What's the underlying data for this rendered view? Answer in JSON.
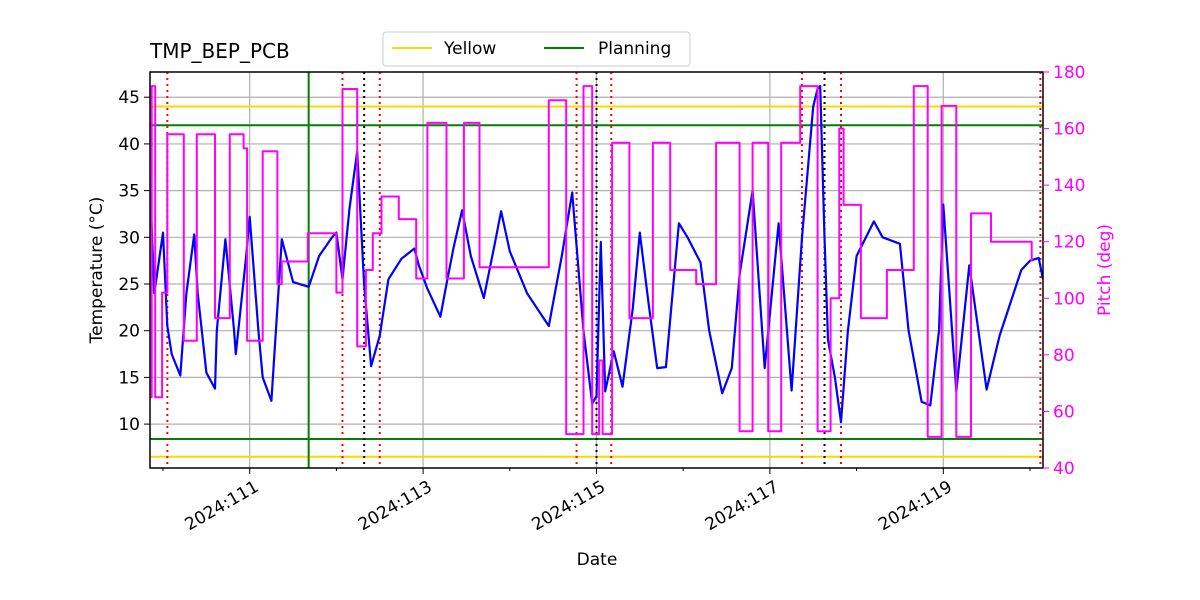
{
  "chart_data": {
    "type": "line",
    "title": "TMP_BEP_PCB",
    "xlabel": "Date",
    "ylabel": "Temperature ($^\\circ$C)",
    "ylabel_display": "Temperature (°C)",
    "y2label": "Pitch (deg)",
    "xlim": [
      109.85,
      120.15
    ],
    "ylim": [
      5.3,
      47.7
    ],
    "y2lim": [
      40,
      180
    ],
    "x_ticks": [
      111,
      113,
      115,
      117,
      119
    ],
    "x_tick_labels": [
      "2024:111",
      "2024:113",
      "2024:115",
      "2024:117",
      "2024:119"
    ],
    "x_minor_ticks": [
      110,
      112,
      114,
      116,
      118,
      120
    ],
    "y_ticks": [
      10,
      15,
      20,
      25,
      30,
      35,
      40,
      45
    ],
    "y_tick_labels": [
      "10",
      "15",
      "20",
      "25",
      "30",
      "35",
      "40",
      "45"
    ],
    "y2_ticks": [
      40,
      60,
      80,
      100,
      120,
      140,
      160,
      180
    ],
    "y2_tick_labels": [
      "40",
      "60",
      "80",
      "100",
      "120",
      "140",
      "160",
      "180"
    ],
    "grid": true,
    "legend": {
      "placement": "top-center",
      "entries": [
        {
          "label": "Yellow",
          "color": "#FFD700"
        },
        {
          "label": "Planning",
          "color": "#008000"
        }
      ]
    },
    "limits": {
      "yellow": [
        6.5,
        44.0
      ],
      "planning": [
        8.4,
        42.0
      ],
      "yellow_color": "#FFD700",
      "planning_color": "#008000"
    },
    "planning_vline_x": 111.68,
    "red_dotted_x": [
      110.05,
      112.07,
      112.5,
      114.77,
      115.17,
      117.37,
      117.82,
      120.12
    ],
    "black_dotted_x": [
      112.32,
      115.0,
      117.63
    ],
    "series": [
      {
        "name": "Temperature",
        "axis": "left",
        "color": "#0000FF",
        "x": [
          109.85,
          109.9,
          110.0,
          110.05,
          110.1,
          110.2,
          110.27,
          110.36,
          110.4,
          110.5,
          110.6,
          110.62,
          110.72,
          110.82,
          110.84,
          110.96,
          111.0,
          111.1,
          111.15,
          111.25,
          111.37,
          111.5,
          111.68,
          111.8,
          111.95,
          112.0,
          112.07,
          112.15,
          112.24,
          112.32,
          112.4,
          112.5,
          112.6,
          112.75,
          112.9,
          112.95,
          113.05,
          113.2,
          113.27,
          113.35,
          113.45,
          113.55,
          113.7,
          113.82,
          113.9,
          114.0,
          114.2,
          114.45,
          114.6,
          114.72,
          114.85,
          114.95,
          115.0,
          115.05,
          115.1,
          115.2,
          115.3,
          115.42,
          115.5,
          115.6,
          115.7,
          115.8,
          115.95,
          116.05,
          116.2,
          116.3,
          116.45,
          116.56,
          116.65,
          116.8,
          116.94,
          117.1,
          117.25,
          117.37,
          117.5,
          117.55,
          117.58,
          117.63,
          117.67,
          117.75,
          117.82,
          117.9,
          118.0,
          118.2,
          118.3,
          118.5,
          118.6,
          118.75,
          118.85,
          118.95,
          119.0,
          119.15,
          119.3,
          119.5,
          119.65,
          119.9,
          120.0,
          120.1,
          120.15
        ],
        "y": [
          35.5,
          24.0,
          30.5,
          20.5,
          17.5,
          15.2,
          24.0,
          30.3,
          24.0,
          15.5,
          13.8,
          20.0,
          29.8,
          20.0,
          17.5,
          28.0,
          32.2,
          20.0,
          15.0,
          12.5,
          29.8,
          25.2,
          24.7,
          28.0,
          30.0,
          30.5,
          25.5,
          33.0,
          39.2,
          25.0,
          16.2,
          19.5,
          25.5,
          27.7,
          28.8,
          27.0,
          24.5,
          21.5,
          25.0,
          28.8,
          32.9,
          28.0,
          23.5,
          29.0,
          32.8,
          28.5,
          24.0,
          20.5,
          28.0,
          34.8,
          20.0,
          12.2,
          13.0,
          29.5,
          13.5,
          17.8,
          14.0,
          22.5,
          30.5,
          23.0,
          16.0,
          16.1,
          31.5,
          30.0,
          27.3,
          20.0,
          13.3,
          16.0,
          26.0,
          35.0,
          16.0,
          31.5,
          13.6,
          30.0,
          44.0,
          45.9,
          46.2,
          30.0,
          19.0,
          15.0,
          10.2,
          20.0,
          28.0,
          31.7,
          30.0,
          29.3,
          20.0,
          12.4,
          12.0,
          20.0,
          33.5,
          13.5,
          27.0,
          13.7,
          19.5,
          26.5,
          27.5,
          27.8,
          25.5
        ]
      },
      {
        "name": "Pitch",
        "axis": "right",
        "color": "#FF00FF",
        "x": [
          109.85,
          109.87,
          109.87,
          109.91,
          109.91,
          109.99,
          109.99,
          110.05,
          110.05,
          110.24,
          110.24,
          110.39,
          110.39,
          110.6,
          110.6,
          110.77,
          110.77,
          110.93,
          110.93,
          110.97,
          110.97,
          111.15,
          111.15,
          111.32,
          111.32,
          111.37,
          111.37,
          111.67,
          111.67,
          112.0,
          112.0,
          112.07,
          112.07,
          112.24,
          112.24,
          112.34,
          112.34,
          112.42,
          112.42,
          112.52,
          112.52,
          112.72,
          112.72,
          112.92,
          112.92,
          113.05,
          113.05,
          113.27,
          113.27,
          113.47,
          113.47,
          113.65,
          113.65,
          113.9,
          113.9,
          114.45,
          114.45,
          114.65,
          114.65,
          114.85,
          114.85,
          114.95,
          114.95,
          115.03,
          115.03,
          115.07,
          115.07,
          115.18,
          115.18,
          115.38,
          115.38,
          115.65,
          115.65,
          115.85,
          115.85,
          116.15,
          116.15,
          116.38,
          116.38,
          116.65,
          116.65,
          116.8,
          116.8,
          116.98,
          116.98,
          117.13,
          117.13,
          117.35,
          117.35,
          117.55,
          117.55,
          117.7,
          117.7,
          117.8,
          117.8,
          117.85,
          117.85,
          118.05,
          118.05,
          118.35,
          118.35,
          118.66,
          118.66,
          118.82,
          118.82,
          118.98,
          118.98,
          119.15,
          119.15,
          119.32,
          119.32,
          119.55,
          119.55,
          120.02,
          120.02
        ],
        "y": [
          65,
          65,
          175,
          175,
          65,
          65,
          102,
          102,
          158,
          158,
          85,
          85,
          158,
          158,
          93,
          93,
          158,
          158,
          153,
          153,
          85,
          85,
          152,
          152,
          105,
          105,
          113,
          113,
          123,
          123,
          102,
          102,
          174,
          174,
          83,
          83,
          110,
          110,
          123,
          123,
          136,
          136,
          128,
          128,
          107,
          107,
          162,
          162,
          107,
          107,
          162,
          162,
          111,
          111,
          111,
          111,
          170,
          170,
          52,
          52,
          175,
          175,
          52,
          52,
          78,
          78,
          52,
          52,
          155,
          155,
          93,
          93,
          155,
          155,
          110,
          110,
          105,
          105,
          155,
          155,
          53,
          53,
          155,
          155,
          53,
          53,
          155,
          155,
          175,
          175,
          53,
          53,
          100,
          100,
          160,
          160,
          133,
          133,
          93,
          93,
          110,
          110,
          175,
          175,
          51,
          51,
          168,
          168,
          51,
          51,
          130,
          130,
          120,
          120,
          113
        ]
      }
    ]
  }
}
